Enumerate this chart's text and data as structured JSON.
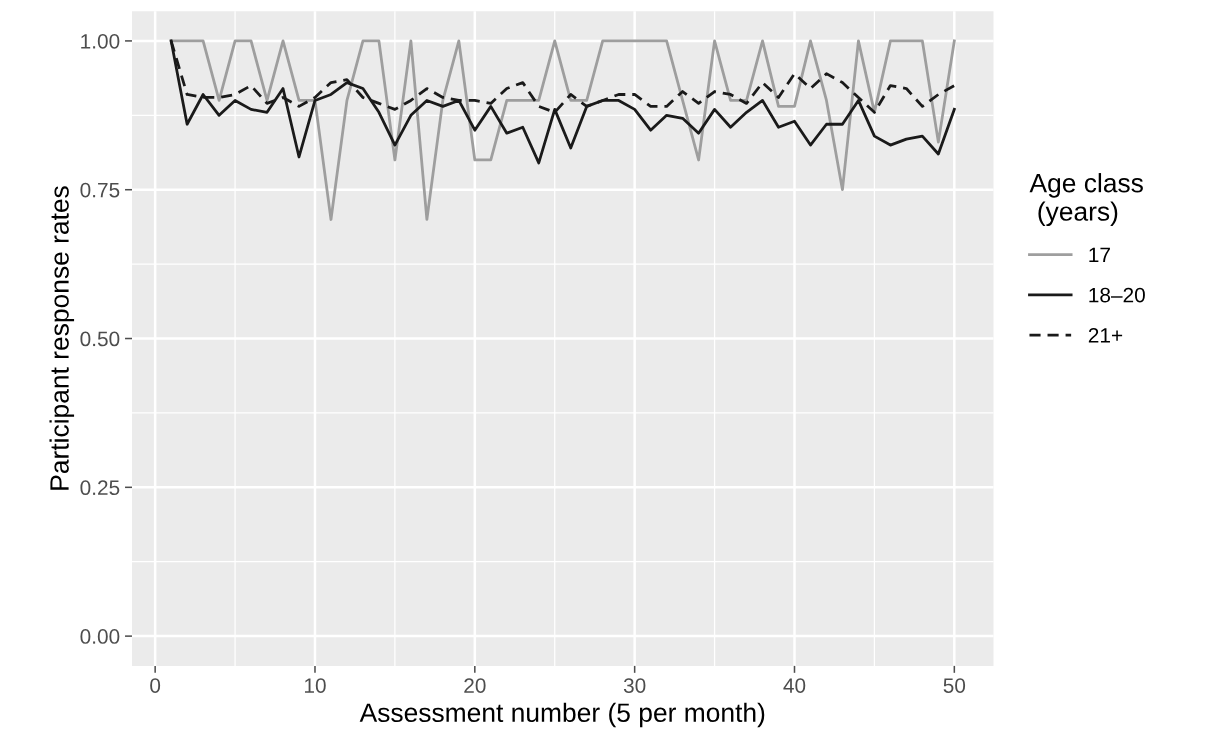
{
  "chart_data": {
    "type": "line",
    "xlabel": "Assessment number (5 per month)",
    "ylabel": "Participant response rates",
    "legend_title": "Age class\n (years)",
    "x": [
      1,
      2,
      3,
      4,
      5,
      6,
      7,
      8,
      9,
      10,
      11,
      12,
      13,
      14,
      15,
      16,
      17,
      18,
      19,
      20,
      21,
      22,
      23,
      24,
      25,
      26,
      27,
      28,
      29,
      30,
      31,
      32,
      33,
      34,
      35,
      36,
      37,
      38,
      39,
      40,
      41,
      42,
      43,
      44,
      45,
      46,
      47,
      48,
      49,
      50
    ],
    "series": [
      {
        "name": "17",
        "color": "#9e9e9e",
        "line_style": "solid",
        "values": [
          1,
          1,
          1,
          0.9,
          1,
          1,
          0.9,
          1,
          0.9,
          0.9,
          0.7,
          0.9,
          1,
          1,
          0.8,
          1,
          0.7,
          0.9,
          1,
          0.8,
          0.8,
          0.9,
          0.9,
          0.9,
          1,
          0.9,
          0.9,
          1,
          1,
          1,
          1,
          1,
          0.9,
          0.8,
          1,
          0.9,
          0.9,
          1,
          0.89,
          0.89,
          1,
          0.9,
          0.75,
          1,
          0.88,
          1,
          1,
          1,
          0.83,
          1
        ]
      },
      {
        "name": "18–20",
        "color": "#1a1a1a",
        "line_style": "solid",
        "values": [
          1,
          0.86,
          0.91,
          0.875,
          0.9,
          0.885,
          0.88,
          0.92,
          0.805,
          0.9,
          0.91,
          0.93,
          0.92,
          0.88,
          0.825,
          0.875,
          0.9,
          0.89,
          0.9,
          0.85,
          0.89,
          0.845,
          0.855,
          0.795,
          0.885,
          0.82,
          0.89,
          0.9,
          0.9,
          0.885,
          0.85,
          0.875,
          0.87,
          0.845,
          0.885,
          0.855,
          0.88,
          0.9,
          0.855,
          0.865,
          0.825,
          0.86,
          0.86,
          0.9,
          0.84,
          0.825,
          0.835,
          0.84,
          0.81,
          0.885
        ]
      },
      {
        "name": "21+",
        "color": "#1a1a1a",
        "line_style": "dashed",
        "values": [
          1,
          0.91,
          0.905,
          0.905,
          0.91,
          0.925,
          0.895,
          0.905,
          0.89,
          0.905,
          0.93,
          0.935,
          0.905,
          0.895,
          0.885,
          0.9,
          0.92,
          0.905,
          0.9,
          0.9,
          0.895,
          0.92,
          0.93,
          0.89,
          0.88,
          0.91,
          0.89,
          0.9,
          0.91,
          0.91,
          0.89,
          0.89,
          0.915,
          0.895,
          0.915,
          0.91,
          0.895,
          0.93,
          0.905,
          0.945,
          0.92,
          0.945,
          0.93,
          0.905,
          0.88,
          0.925,
          0.92,
          0.89,
          0.91,
          0.925
        ]
      }
    ],
    "xlim": [
      -1.45,
      52.45
    ],
    "xticks": [
      0,
      10,
      20,
      30,
      40,
      50
    ],
    "ylim": [
      -0.05,
      1.05
    ],
    "yticks": [
      {
        "value": 0,
        "label": "0.00"
      },
      {
        "value": 0.25,
        "label": "0.25"
      },
      {
        "value": 0.5,
        "label": "0.50"
      },
      {
        "value": 0.75,
        "label": "0.75"
      },
      {
        "value": 1,
        "label": "1.00"
      }
    ],
    "grid": true,
    "legend": "right"
  }
}
